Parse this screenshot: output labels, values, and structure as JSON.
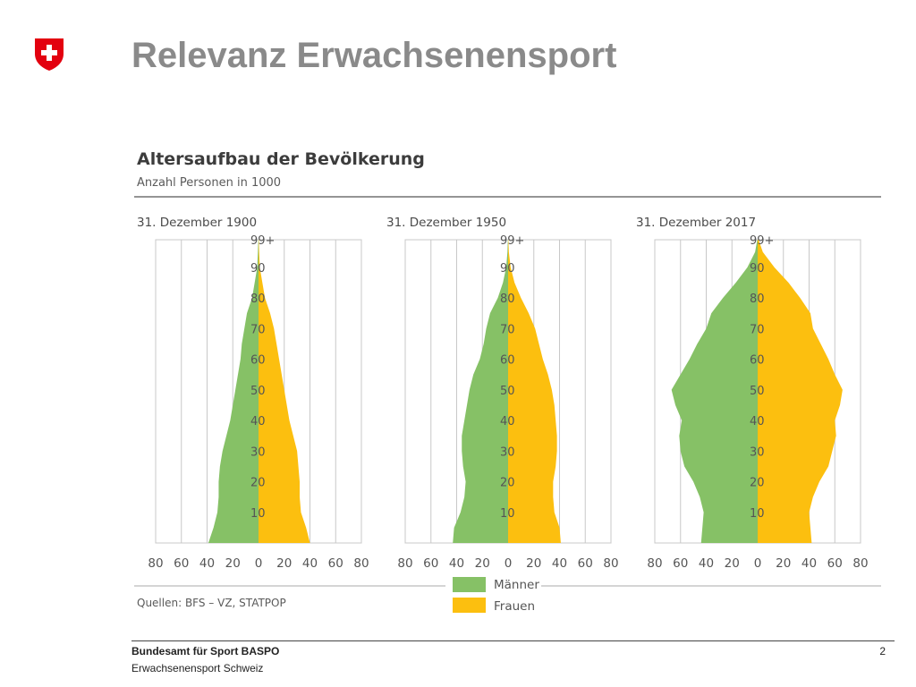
{
  "slide": {
    "title": "Relevanz Erwachsenensport",
    "footer_org": "Bundesamt für Sport BASPO",
    "footer_sub": "Erwachsenensport Schweiz",
    "page_number": "2"
  },
  "colors": {
    "men": "#86c166",
    "women": "#fcbf0f",
    "grid": "#c8c8c8",
    "logo_red": "#e3000f",
    "title_gray": "#8a8a8a"
  },
  "chart_data": {
    "type": "population_pyramid",
    "title": "Altersaufbau der Bevölkerung",
    "subtitle": "Anzahl Personen in 1000",
    "source": "Quellen: BFS – VZ, STATPOP",
    "legend": [
      "Männer",
      "Frauen"
    ],
    "legend_position": "bottom-center",
    "grid": true,
    "xlim": [
      -80,
      80
    ],
    "xticks": [
      "80",
      "60",
      "40",
      "20",
      "0",
      "20",
      "40",
      "80"
    ],
    "age_labels": [
      "99+",
      "90",
      "80",
      "70",
      "60",
      "50",
      "40",
      "30",
      "20",
      "10"
    ],
    "age_label_values": [
      99,
      90,
      80,
      70,
      60,
      50,
      40,
      30,
      20,
      10
    ],
    "ylim": [
      0,
      99
    ],
    "panels": [
      {
        "title": "31. Dezember 1900",
        "ages": [
          0,
          5,
          10,
          15,
          20,
          25,
          30,
          35,
          40,
          45,
          50,
          55,
          60,
          65,
          70,
          75,
          80,
          85,
          90,
          95,
          99
        ],
        "men": [
          39,
          35,
          32,
          31,
          31,
          30,
          28,
          25,
          22,
          20,
          18,
          16,
          14,
          13,
          11,
          9,
          5,
          3,
          1,
          0.5,
          0.2
        ],
        "women": [
          40,
          37,
          33,
          32,
          32,
          31,
          30,
          27,
          24,
          22,
          20,
          18,
          16,
          14,
          12,
          9,
          5,
          3,
          1,
          0.5,
          0.2
        ]
      },
      {
        "title": "31. Dezember 1950",
        "ages": [
          0,
          5,
          10,
          15,
          20,
          25,
          30,
          35,
          40,
          45,
          50,
          55,
          60,
          65,
          70,
          75,
          80,
          85,
          90,
          95,
          99
        ],
        "men": [
          43,
          42,
          37,
          34,
          33,
          35,
          36,
          36,
          34,
          32,
          30,
          27,
          22,
          19,
          17,
          14,
          8,
          4,
          1.5,
          0.5,
          0.2
        ],
        "women": [
          41,
          40,
          36,
          35,
          35,
          37,
          38,
          38,
          37,
          36,
          34,
          31,
          27,
          24,
          21,
          16,
          10,
          5,
          2,
          0.6,
          0.2
        ]
      },
      {
        "title": "31. Dezember 2017",
        "ages": [
          0,
          5,
          10,
          15,
          20,
          25,
          30,
          35,
          40,
          45,
          50,
          55,
          60,
          65,
          70,
          75,
          80,
          85,
          90,
          95,
          99
        ],
        "men": [
          44,
          43,
          42,
          45,
          50,
          57,
          60,
          61,
          59,
          64,
          67,
          60,
          53,
          47,
          40,
          36,
          27,
          17,
          8,
          2,
          0.3
        ],
        "women": [
          42,
          41,
          40,
          43,
          48,
          55,
          58,
          61,
          60,
          64,
          66,
          60,
          55,
          49,
          43,
          41,
          33,
          24,
          13,
          4,
          0.7
        ]
      }
    ]
  }
}
